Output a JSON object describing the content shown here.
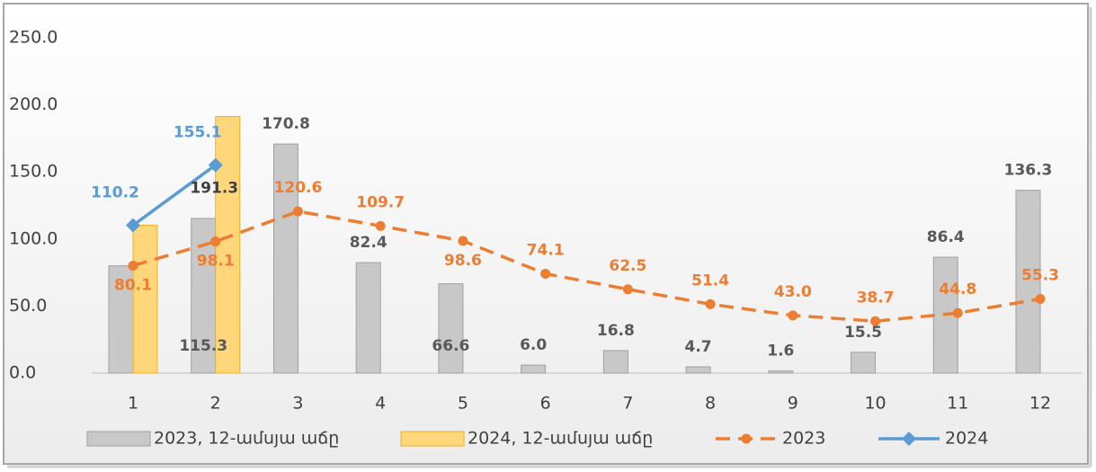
{
  "chart_data": {
    "type": "bar_line",
    "categories": [
      "1",
      "2",
      "3",
      "4",
      "5",
      "6",
      "7",
      "8",
      "9",
      "10",
      "11",
      "12"
    ],
    "ylim": [
      0,
      250
    ],
    "yticks": [
      {
        "value": 0,
        "label": "0.0"
      },
      {
        "value": 50,
        "label": "50.0"
      },
      {
        "value": 100,
        "label": "100.0"
      },
      {
        "value": 150,
        "label": "150.0"
      },
      {
        "value": 200,
        "label": "200.0"
      },
      {
        "value": 250,
        "label": "250.0"
      }
    ],
    "series": [
      {
        "name": "2023, 12-ամսյա աճը",
        "kind": "bar",
        "color": "#c8c8c8",
        "values": [
          80,
          115.3,
          170.8,
          82.4,
          66.6,
          6.0,
          16.8,
          4.7,
          1.6,
          15.5,
          86.4,
          136.3
        ],
        "value_labels": [
          null,
          "115.3",
          "170.8",
          "82.4",
          "66.6",
          "6.0",
          "16.8",
          "4.7",
          "1.6",
          "15.5",
          "86.4",
          "136.3"
        ]
      },
      {
        "name": "2024, 12-ամսյա աճը",
        "kind": "bar",
        "color": "#ffd77a",
        "values": [
          110.2,
          191.3,
          null,
          null,
          null,
          null,
          null,
          null,
          null,
          null,
          null,
          null
        ],
        "value_labels": [
          null,
          "191.3",
          null,
          null,
          null,
          null,
          null,
          null,
          null,
          null,
          null,
          null
        ]
      },
      {
        "name": "2023",
        "kind": "line",
        "dashed": true,
        "color": "#ed7d31",
        "values": [
          80.1,
          98.1,
          120.6,
          109.7,
          98.6,
          74.1,
          62.5,
          51.4,
          43.0,
          38.7,
          44.8,
          55.3
        ],
        "value_labels": [
          "80.1",
          "98.1",
          "120.6",
          "109.7",
          "98.6",
          "74.1",
          "62.5",
          "51.4",
          "43.0",
          "38.7",
          "44.8",
          "55.3"
        ]
      },
      {
        "name": "2024",
        "kind": "line",
        "dashed": false,
        "color": "#5b9bd5",
        "values": [
          110.2,
          155.1,
          null,
          null,
          null,
          null,
          null,
          null,
          null,
          null,
          null,
          null
        ],
        "value_labels": [
          "110.2",
          "155.1",
          null,
          null,
          null,
          null,
          null,
          null,
          null,
          null,
          null,
          null
        ]
      }
    ]
  }
}
